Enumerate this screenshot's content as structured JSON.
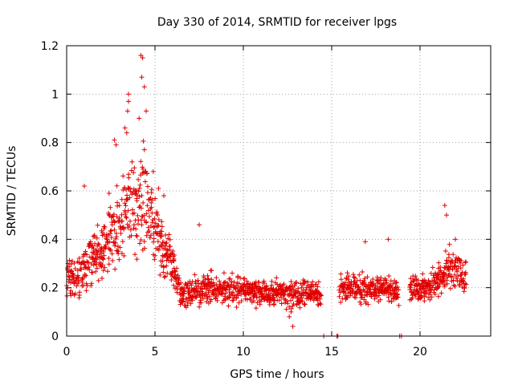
{
  "chart_data": {
    "type": "scatter",
    "title": "Day 330 of 2014, SRMTID for receiver lpgs",
    "xlabel": "GPS time / hours",
    "ylabel": "SRMTID / TECUs",
    "xlim": [
      0,
      24
    ],
    "ylim": [
      0,
      1.2
    ],
    "xticks": [
      0,
      5,
      10,
      15,
      20
    ],
    "yticks": [
      0,
      0.2,
      0.4,
      0.6,
      0.8,
      1,
      1.2
    ],
    "ytick_labels": [
      "0",
      "0.2",
      "0.4",
      "0.6",
      "0.8",
      "1",
      "1.2"
    ],
    "grid": true,
    "marker": "plus",
    "color": "#e00000",
    "series": [
      {
        "name": "SRMTID",
        "envelope": [
          [
            0.0,
            0.25,
            0.1
          ],
          [
            0.5,
            0.22,
            0.08
          ],
          [
            1.0,
            0.3,
            0.1
          ],
          [
            1.5,
            0.33,
            0.09
          ],
          [
            2.0,
            0.36,
            0.1
          ],
          [
            2.5,
            0.42,
            0.12
          ],
          [
            3.0,
            0.45,
            0.15
          ],
          [
            3.5,
            0.55,
            0.16
          ],
          [
            4.0,
            0.5,
            0.15
          ],
          [
            4.3,
            0.62,
            0.22
          ],
          [
            4.7,
            0.5,
            0.15
          ],
          [
            5.0,
            0.45,
            0.12
          ],
          [
            5.5,
            0.35,
            0.1
          ],
          [
            6.0,
            0.28,
            0.08
          ],
          [
            6.5,
            0.18,
            0.05
          ],
          [
            7.0,
            0.18,
            0.05
          ],
          [
            8.0,
            0.2,
            0.06
          ],
          [
            9.0,
            0.19,
            0.05
          ],
          [
            10.0,
            0.19,
            0.05
          ],
          [
            11.0,
            0.18,
            0.05
          ],
          [
            12.0,
            0.18,
            0.05
          ],
          [
            13.0,
            0.17,
            0.05
          ],
          [
            14.0,
            0.18,
            0.05
          ],
          [
            14.4,
            0.18,
            0.05
          ],
          [
            15.4,
            0.19,
            0.05
          ],
          [
            16.0,
            0.2,
            0.05
          ],
          [
            17.0,
            0.19,
            0.05
          ],
          [
            18.0,
            0.2,
            0.05
          ],
          [
            19.0,
            0.18,
            0.05
          ],
          [
            19.5,
            0.2,
            0.05
          ],
          [
            20.5,
            0.2,
            0.05
          ],
          [
            21.0,
            0.22,
            0.06
          ],
          [
            21.5,
            0.28,
            0.07
          ],
          [
            22.0,
            0.28,
            0.08
          ],
          [
            22.6,
            0.24,
            0.06
          ]
        ],
        "gaps": [
          [
            14.4,
            15.4
          ],
          [
            18.8,
            19.4
          ]
        ],
        "peaks": [
          [
            4.2,
            1.16
          ],
          [
            4.3,
            1.15
          ],
          [
            4.25,
            1.07
          ],
          [
            4.4,
            1.03
          ],
          [
            3.5,
            1.0
          ],
          [
            3.5,
            0.97
          ],
          [
            3.45,
            0.93
          ],
          [
            4.5,
            0.93
          ],
          [
            4.1,
            0.9
          ],
          [
            3.3,
            0.86
          ],
          [
            3.4,
            0.84
          ],
          [
            2.7,
            0.81
          ],
          [
            2.8,
            0.79
          ],
          [
            4.4,
            0.77
          ],
          [
            3.7,
            0.72
          ],
          [
            4.9,
            0.68
          ],
          [
            2.4,
            0.59
          ],
          [
            1.0,
            0.62
          ],
          [
            5.2,
            0.61
          ],
          [
            5.5,
            0.58
          ],
          [
            21.4,
            0.54
          ],
          [
            21.5,
            0.5
          ],
          [
            18.2,
            0.4
          ],
          [
            22.0,
            0.4
          ],
          [
            16.9,
            0.39
          ],
          [
            7.5,
            0.46
          ],
          [
            12.7,
            0.1
          ],
          [
            12.6,
            0.08
          ],
          [
            12.8,
            0.04
          ]
        ],
        "zero_points": [
          [
            14.55,
            0
          ],
          [
            15.3,
            0
          ],
          [
            15.35,
            0
          ],
          [
            18.85,
            0
          ],
          [
            18.95,
            0
          ]
        ]
      }
    ]
  }
}
